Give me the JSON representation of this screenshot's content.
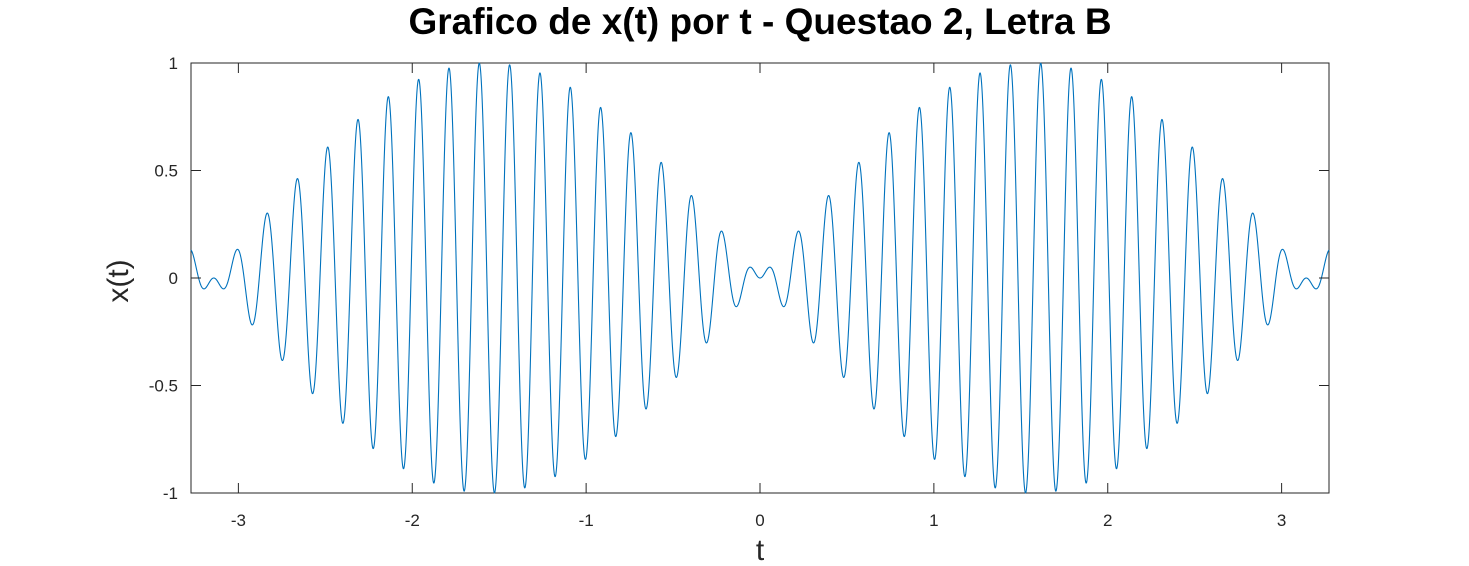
{
  "chart_data": {
    "type": "line",
    "title": "Grafico de x(t) por t - Questao 2, Letra B",
    "xlabel": "t",
    "ylabel": "x(t)",
    "xlim": [
      -3.2725,
      3.2725
    ],
    "ylim": [
      -1,
      1
    ],
    "xticks": [
      -3,
      -2,
      -1,
      0,
      1,
      2,
      3
    ],
    "yticks": [
      -1,
      -0.5,
      0,
      0.5,
      1
    ],
    "xtick_labels": [
      "-3",
      "-2",
      "-1",
      "0",
      "1",
      "2",
      "3"
    ],
    "ytick_labels": [
      "-1",
      "-0.5",
      "0",
      "0.5",
      "1"
    ],
    "grid": false,
    "series": [
      {
        "function": "sin(t) * sin(36 * t)",
        "t_range": [
          -3.2725,
          3.2725
        ],
        "color": "#0072bd"
      }
    ]
  }
}
